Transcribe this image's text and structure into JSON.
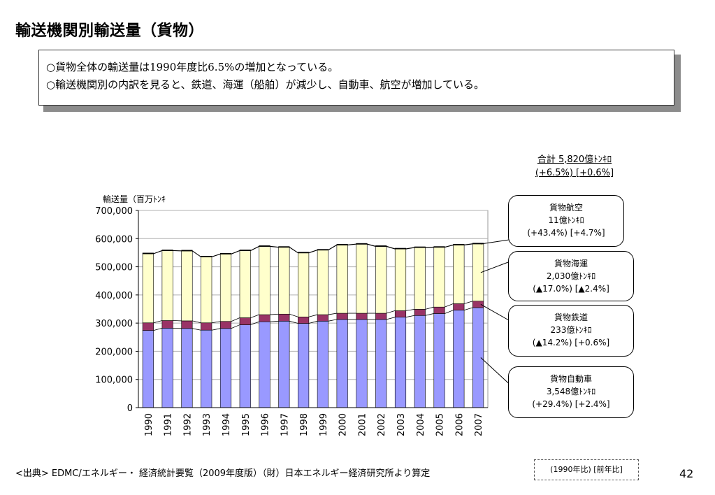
{
  "title": "輸送機関別輸送量（貨物）",
  "summary": [
    "○貨物全体の輸送量は1990年度比6.5%の増加となっている。",
    "○輸送機関別の内訳を見ると、鉄道、海運（船舶）が減少し、自動車、航空が増加している。"
  ],
  "total": {
    "line1": "合計  5,820億ﾄﾝｷﾛ",
    "line2": "(+6.5%) [+0.6%]"
  },
  "callouts": {
    "air": {
      "name": "貨物航空",
      "value": "11億ﾄﾝｷﾛ",
      "change": "(+43.4%)  [+4.7%]"
    },
    "sea": {
      "name": "貨物海運",
      "value": "2,030億ﾄﾝｷﾛ",
      "change": "(▲17.0%)  [▲2.4%]"
    },
    "rail": {
      "name": "貨物鉄道",
      "value": "233億ﾄﾝｷﾛ",
      "change": "(▲14.2%)  [+0.6%]"
    },
    "road": {
      "name": "貨物自動車",
      "value": "3,548億ﾄﾝｷﾛ",
      "change": "(+29.4%)  [+2.4%]"
    }
  },
  "source": "<出典>  EDMC/エネルギー・ 経済統計要覧（2009年度版）（財）日本エネルギー経済研究所より算定",
  "legend_note": "(1990年比) [前年比]",
  "page_number": "42",
  "chart_data": {
    "type": "bar",
    "stacked": true,
    "ylabel": "輸送量（百万ﾄﾝｷ",
    "ylim": [
      0,
      700000
    ],
    "yticks": [
      "0",
      "100,000",
      "200,000",
      "300,000",
      "400,000",
      "500,000",
      "600,000",
      "700,000"
    ],
    "categories": [
      "1990",
      "1991",
      "1992",
      "1993",
      "1994",
      "1995",
      "1996",
      "1997",
      "1998",
      "1999",
      "2000",
      "2001",
      "2002",
      "2003",
      "2004",
      "2005",
      "2006",
      "2007"
    ],
    "series": [
      {
        "name": "貨物自動車",
        "color": "#9999ff",
        "values": [
          274000,
          282000,
          281000,
          275000,
          281000,
          294000,
          305000,
          307000,
          299000,
          307000,
          313000,
          313000,
          313000,
          321000,
          327000,
          334000,
          346000,
          355000
        ]
      },
      {
        "name": "貨物鉄道",
        "color": "#993366",
        "values": [
          27000,
          27000,
          27000,
          26000,
          25000,
          25000,
          25000,
          25000,
          23000,
          23000,
          22000,
          22000,
          22000,
          23000,
          22000,
          23000,
          23000,
          23000
        ]
      },
      {
        "name": "貨物海運",
        "color": "#ffffcc",
        "values": [
          245000,
          248000,
          248000,
          234000,
          239000,
          238000,
          242000,
          237000,
          227000,
          229000,
          242000,
          245000,
          237000,
          219000,
          219000,
          212000,
          208000,
          203000
        ]
      },
      {
        "name": "貨物航空",
        "color": "#000000",
        "values": [
          800,
          800,
          800,
          800,
          900,
          900,
          1000,
          1000,
          1000,
          1000,
          1100,
          1000,
          1000,
          1000,
          1100,
          1100,
          1100,
          1100
        ]
      }
    ]
  }
}
